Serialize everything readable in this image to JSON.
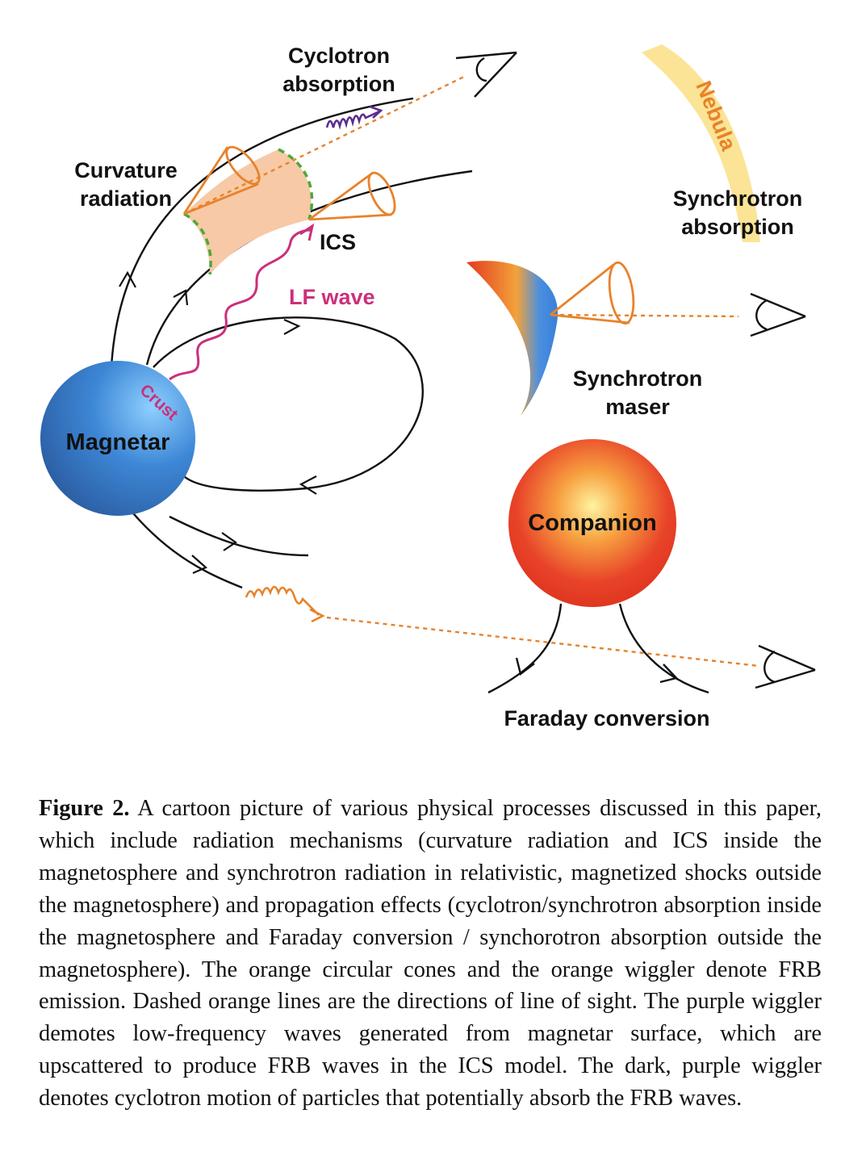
{
  "labels": {
    "cyclotron_absorption": [
      "Cyclotron",
      "absorption"
    ],
    "curvature_radiation": [
      "Curvature",
      "radiation"
    ],
    "ics": "ICS",
    "lf_wave": "LF wave",
    "crust": "Crust",
    "magnetar": "Magnetar",
    "nebula": "Nebula",
    "synchrotron_absorption": [
      "Synchrotron",
      "absorption"
    ],
    "synchrotron_maser": [
      "Synchrotron",
      "maser"
    ],
    "companion": "Companion",
    "faraday_conversion": "Faraday conversion"
  },
  "colors": {
    "orange": "#e8822a",
    "magenta": "#cc2f7a",
    "purple": "#5b2c91",
    "green_dashed": "#4ea83a",
    "cone_fill": "#f7c9a6",
    "magnetar_blue": "#3d87d6",
    "companion_red": "#e53b24",
    "nebula_yellow": "#fbe18a"
  },
  "caption": {
    "label": "Figure 2.",
    "text": "A cartoon picture of various physical processes discussed in this paper, which include radiation mechanisms (curvature radiation and ICS inside the magnetosphere and synchrotron radiation in relativistic, magnetized shocks outside the magnetosphere) and propagation effects (cyclotron/synchrotron absorption inside the magnetosphere and Faraday conversion / synchorotron absorption outside the magnetosphere). The orange circular cones and the orange wiggler denote FRB emission. Dashed orange lines are the directions of line of sight. The purple wiggler demotes low-frequency waves generated from magnetar surface, which are upscattered to produce FRB waves in the ICS model. The dark, purple wiggler denotes cyclotron motion of particles that potentially absorb the FRB waves."
  }
}
